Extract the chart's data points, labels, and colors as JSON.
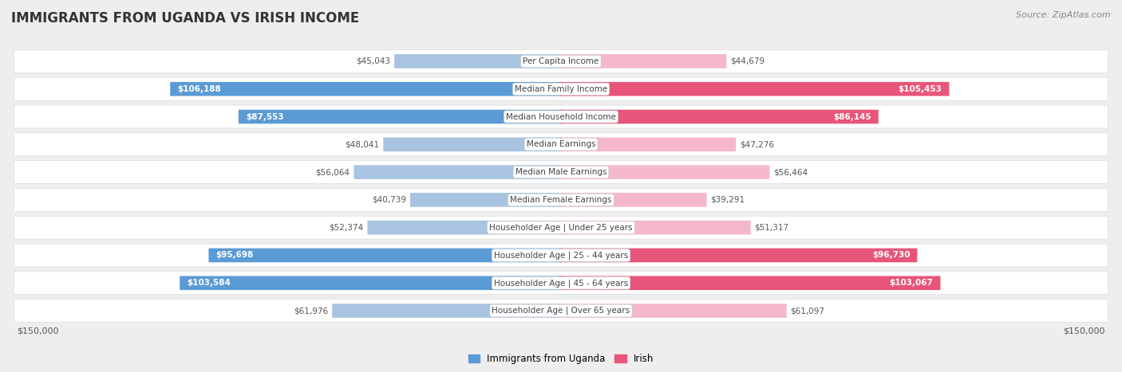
{
  "title": "IMMIGRANTS FROM UGANDA VS IRISH INCOME",
  "source": "Source: ZipAtlas.com",
  "categories": [
    "Per Capita Income",
    "Median Family Income",
    "Median Household Income",
    "Median Earnings",
    "Median Male Earnings",
    "Median Female Earnings",
    "Householder Age | Under 25 years",
    "Householder Age | 25 - 44 years",
    "Householder Age | 45 - 64 years",
    "Householder Age | Over 65 years"
  ],
  "uganda_values": [
    45043,
    106188,
    87553,
    48041,
    56064,
    40739,
    52374,
    95698,
    103584,
    61976
  ],
  "irish_values": [
    44679,
    105453,
    86145,
    47276,
    56464,
    39291,
    51317,
    96730,
    103067,
    61097
  ],
  "uganda_labels": [
    "$45,043",
    "$106,188",
    "$87,553",
    "$48,041",
    "$56,064",
    "$40,739",
    "$52,374",
    "$95,698",
    "$103,584",
    "$61,976"
  ],
  "irish_labels": [
    "$44,679",
    "$105,453",
    "$86,145",
    "$47,276",
    "$56,464",
    "$39,291",
    "$51,317",
    "$96,730",
    "$103,067",
    "$61,097"
  ],
  "uganda_color_light": "#a8c4e0",
  "uganda_color_dark": "#5b9bd5",
  "irish_color_light": "#f4b8ca",
  "irish_color_dark": "#e8557a",
  "max_value": 150000,
  "legend_uganda": "Immigrants from Uganda",
  "legend_irish": "Irish",
  "bg_color": "#eeeeee",
  "row_bg_color": "#ffffff",
  "label_dark_threshold": 80000,
  "category_fontsize": 7.5,
  "label_fontsize": 7.5,
  "title_fontsize": 12
}
